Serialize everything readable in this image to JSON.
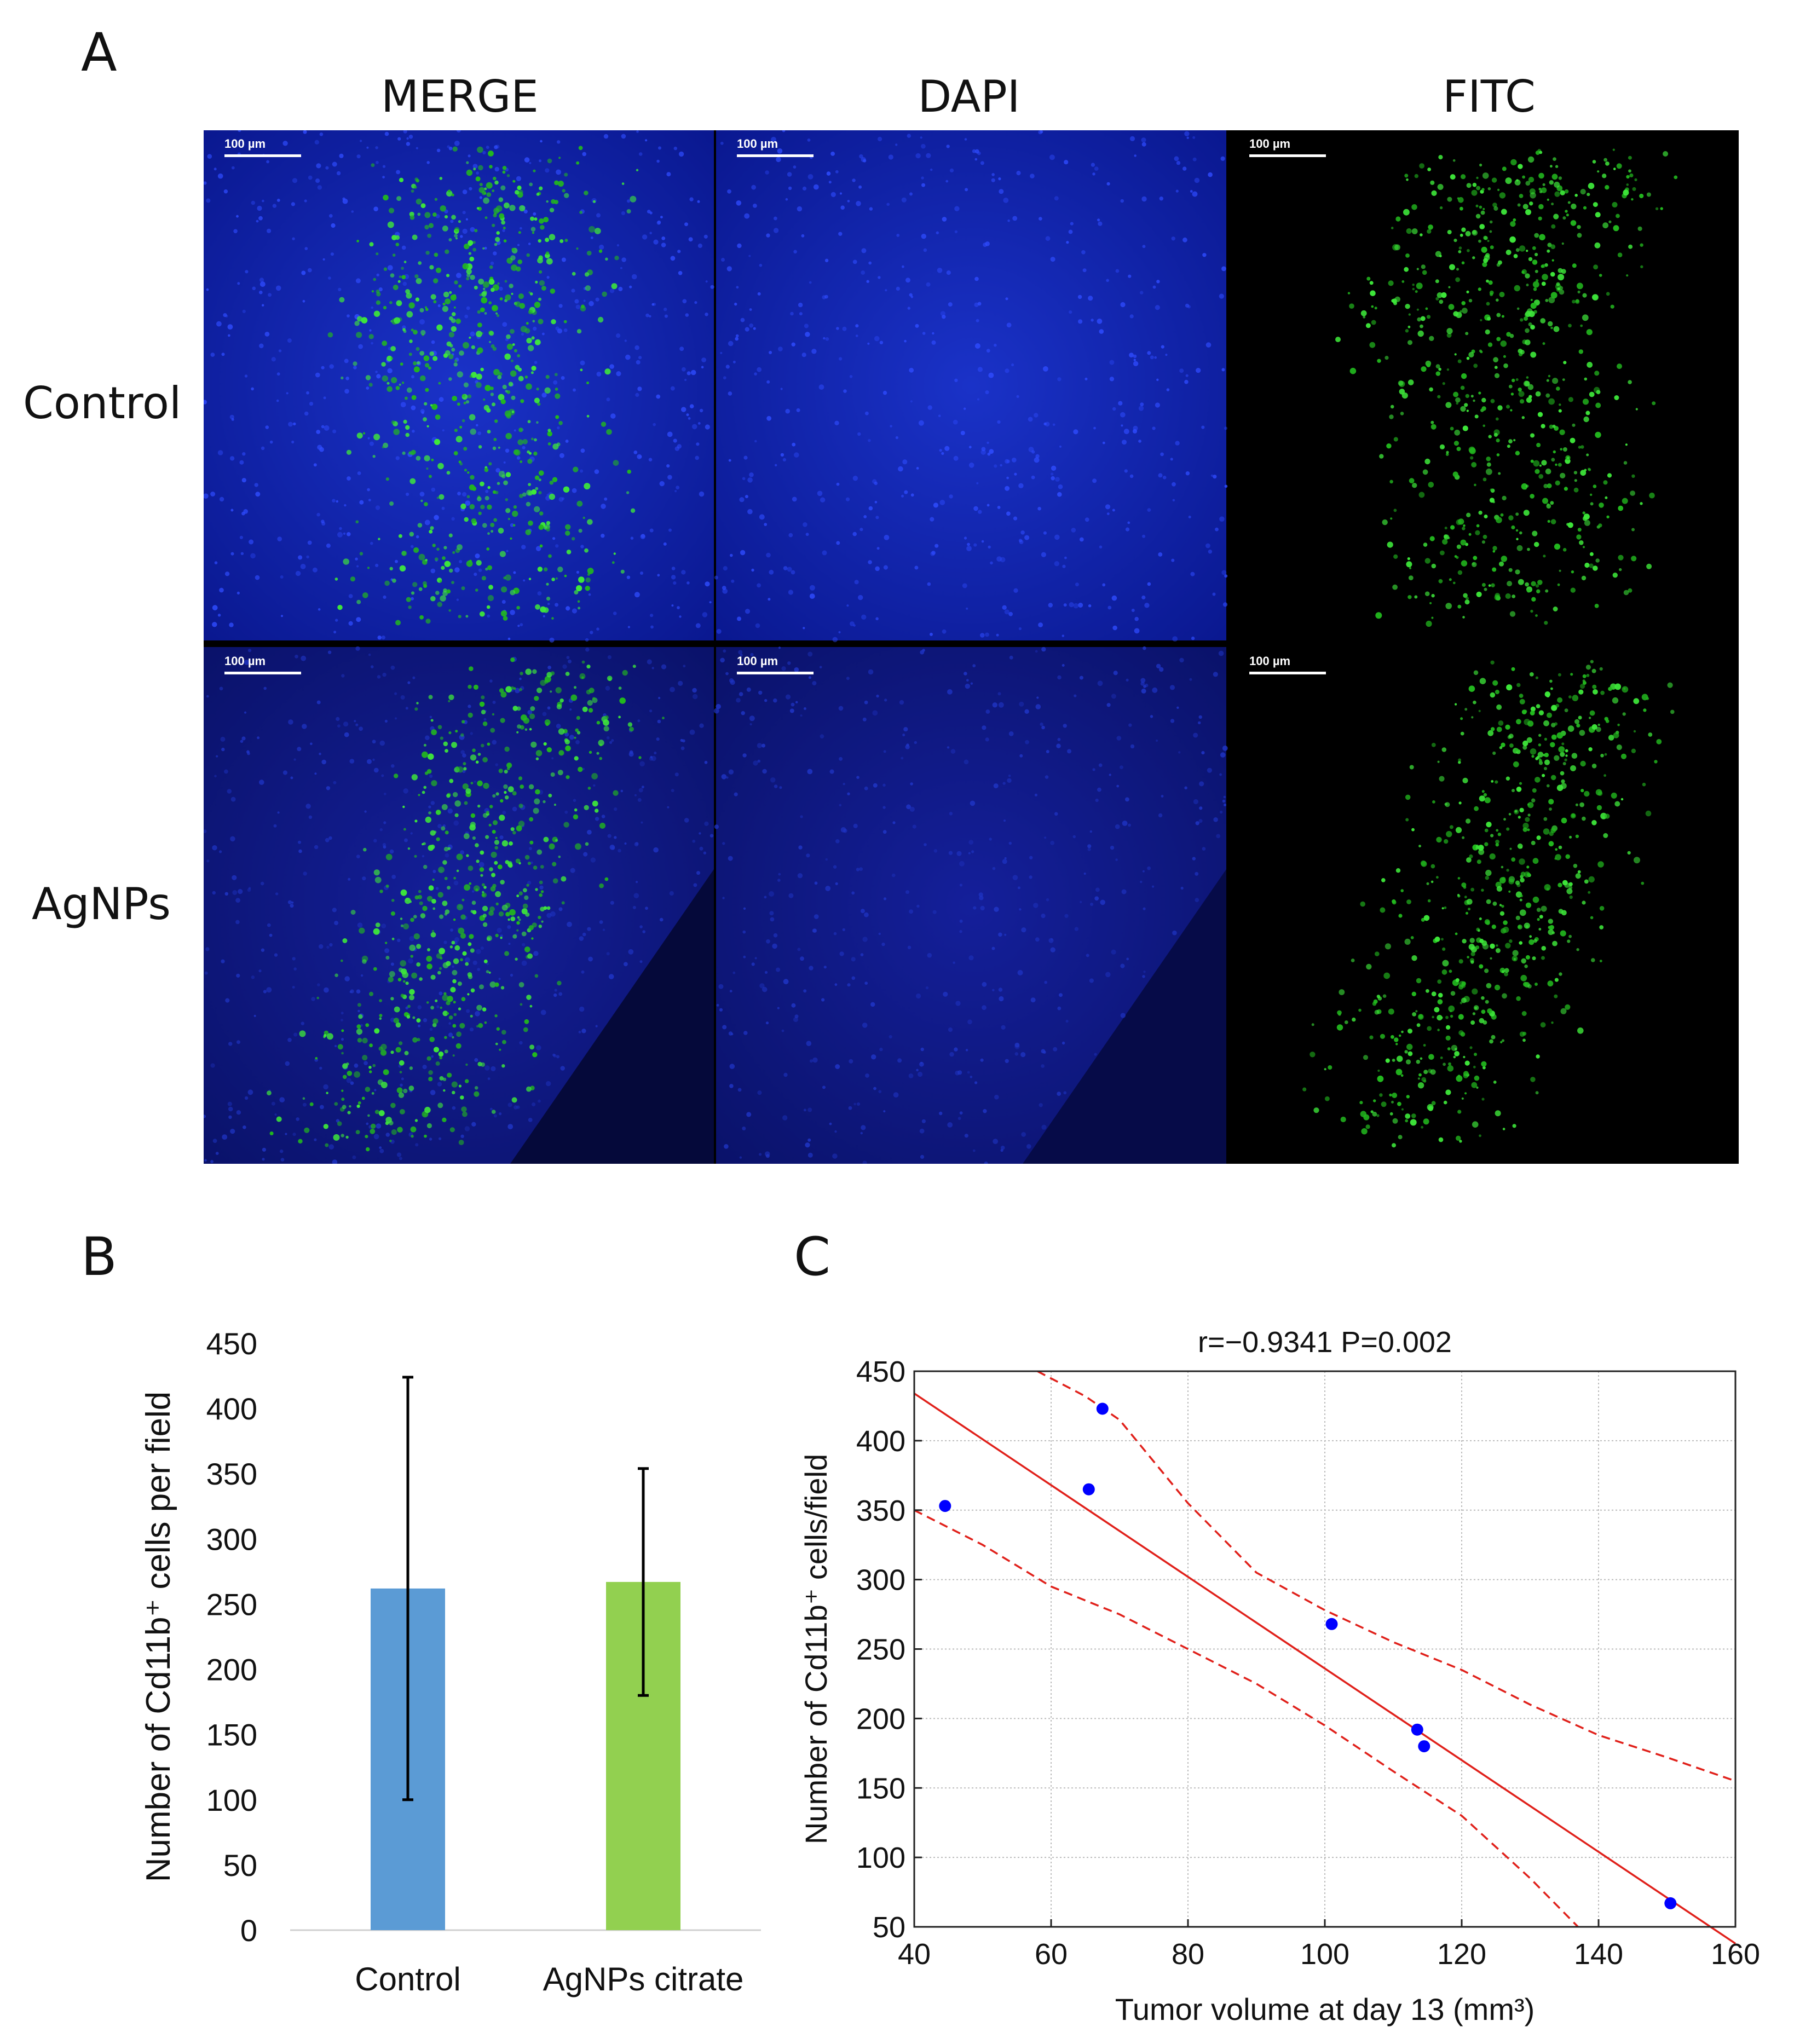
{
  "panel_labels": {
    "a": "A",
    "b": "B",
    "c": "C"
  },
  "panel_a": {
    "columns": [
      "MERGE",
      "DAPI",
      "FITC"
    ],
    "rows": [
      "Control",
      "AgNPs"
    ],
    "scale_bar": "100 µm"
  },
  "chart_data": [
    {
      "panel": "B",
      "type": "bar",
      "categories": [
        "Control",
        "AgNPs citrate"
      ],
      "values": [
        262,
        267
      ],
      "error": [
        162,
        87
      ],
      "colors": [
        "#5b9bd5",
        "#92d050"
      ],
      "xlabel": "",
      "ylabel": "Number of Cd11b⁺ cells per field",
      "ylim": [
        0,
        450
      ],
      "yticks": [
        0,
        50,
        100,
        150,
        200,
        250,
        300,
        350,
        400,
        450
      ],
      "grid": false
    },
    {
      "panel": "C",
      "type": "scatter",
      "annotation": "r=−0.9341     P=0.002",
      "xlabel": "Tumor volume at day 13 (mm³)",
      "ylabel": "Number of Cd11b⁺ cells/field",
      "xlim": [
        40,
        160
      ],
      "ylim": [
        50,
        450
      ],
      "xticks": [
        40,
        60,
        80,
        100,
        120,
        140,
        160
      ],
      "yticks": [
        50,
        100,
        150,
        200,
        250,
        300,
        350,
        400,
        450
      ],
      "points": [
        {
          "x": 44.5,
          "y": 353
        },
        {
          "x": 65.5,
          "y": 365
        },
        {
          "x": 67.5,
          "y": 423
        },
        {
          "x": 101,
          "y": 268
        },
        {
          "x": 113.5,
          "y": 192
        },
        {
          "x": 114.5,
          "y": 180
        },
        {
          "x": 150.5,
          "y": 67
        }
      ],
      "fit_line": {
        "slope": -3.3,
        "intercept": 566
      },
      "confidence_upper": [
        [
          58,
          450
        ],
        [
          65,
          432
        ],
        [
          70,
          415
        ],
        [
          80,
          355
        ],
        [
          90,
          305
        ],
        [
          100,
          278
        ],
        [
          110,
          255
        ],
        [
          120,
          235
        ],
        [
          130,
          210
        ],
        [
          140,
          188
        ],
        [
          150,
          172
        ],
        [
          160,
          155
        ]
      ],
      "confidence_lower": [
        [
          40,
          350
        ],
        [
          50,
          325
        ],
        [
          60,
          295
        ],
        [
          70,
          275
        ],
        [
          80,
          250
        ],
        [
          90,
          225
        ],
        [
          100,
          195
        ],
        [
          110,
          162
        ],
        [
          120,
          130
        ],
        [
          130,
          85
        ],
        [
          137,
          50
        ]
      ],
      "point_color": "#0000ff",
      "line_color": "#e0201a",
      "grid": true
    }
  ]
}
